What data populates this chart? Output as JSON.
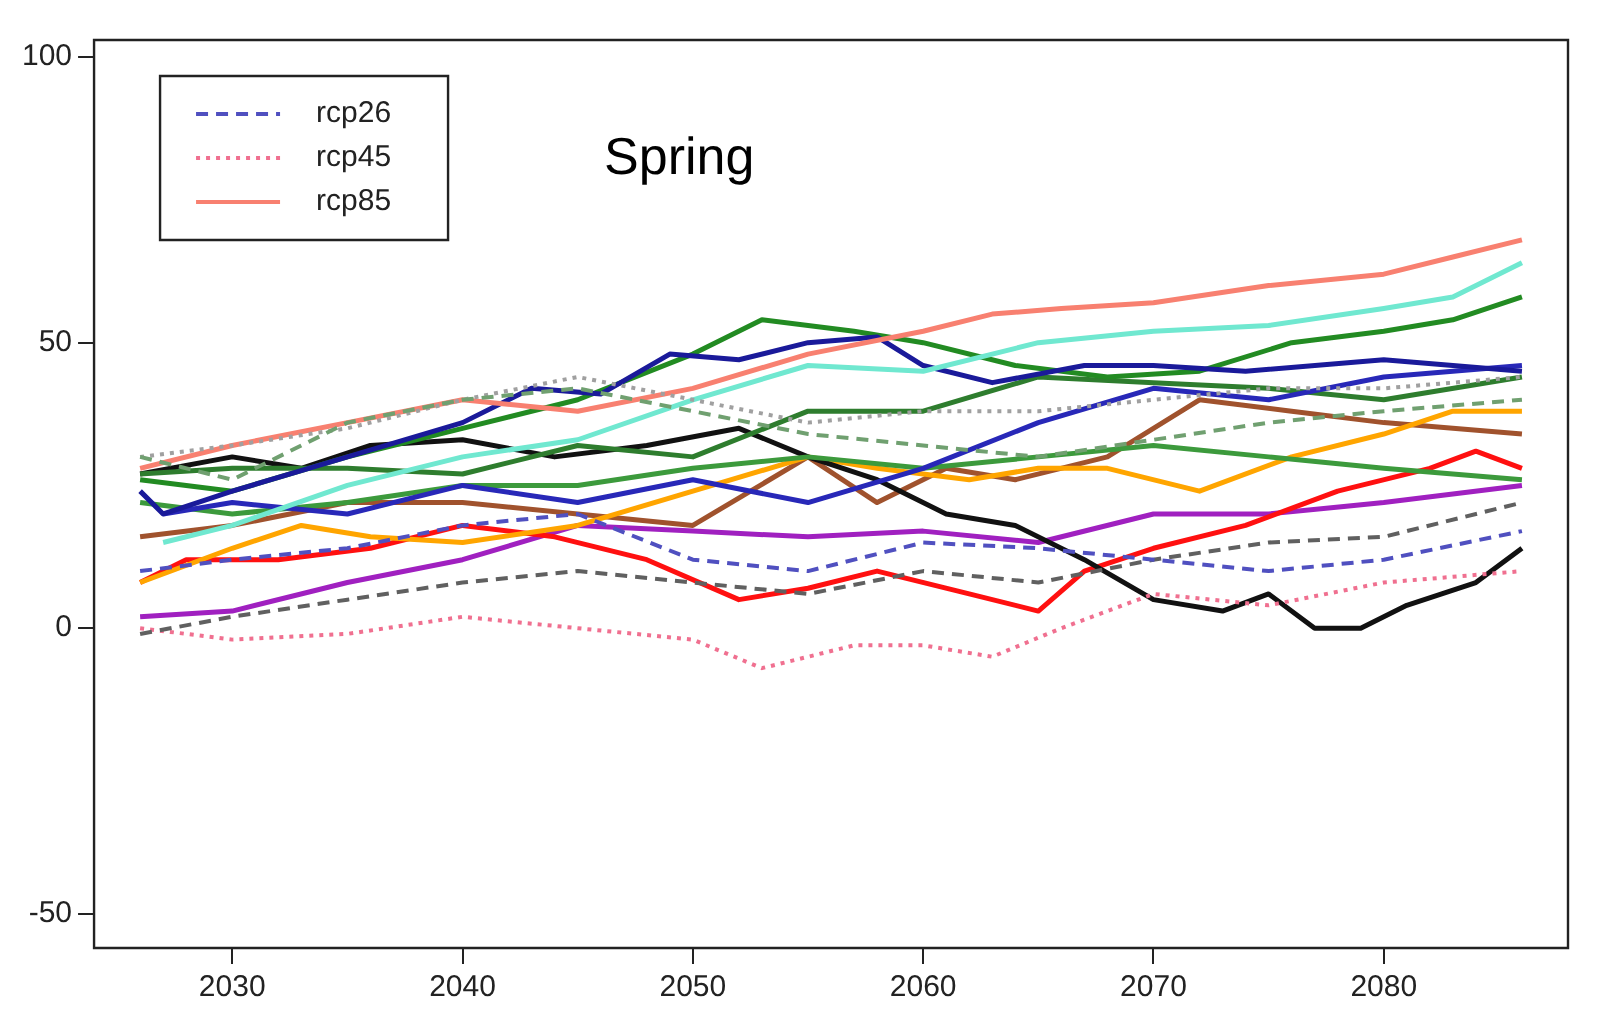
{
  "chart_data": {
    "type": "line",
    "title": "Spring",
    "xlim": [
      2024,
      2088
    ],
    "xticks": [
      2030,
      2040,
      2050,
      2060,
      2070,
      2080
    ],
    "ylim": [
      -56,
      103
    ],
    "yticks": [
      -50,
      0,
      50,
      100
    ],
    "grid": false,
    "legend": "top left",
    "marker": "none",
    "series": [
      {
        "name": "rcp26",
        "color": "#5050c0",
        "line_style": "dashed",
        "x": [
          2026,
          2030,
          2035,
          2040,
          2045,
          2050,
          2055,
          2060,
          2065,
          2070,
          2075,
          2080,
          2086
        ],
        "values": [
          10,
          12,
          14,
          18,
          20,
          12,
          10,
          15,
          14,
          12,
          10,
          12,
          17
        ]
      },
      {
        "color": "#606060",
        "line_style": "dashed",
        "x": [
          2026,
          2030,
          2035,
          2040,
          2045,
          2050,
          2055,
          2060,
          2065,
          2070,
          2075,
          2080,
          2086
        ],
        "values": [
          -1,
          2,
          5,
          8,
          10,
          8,
          6,
          10,
          8,
          12,
          15,
          16,
          22
        ]
      },
      {
        "color": "#70a070",
        "line_style": "dashed",
        "x": [
          2026,
          2030,
          2035,
          2040,
          2045,
          2050,
          2055,
          2060,
          2065,
          2070,
          2075,
          2080,
          2086
        ],
        "values": [
          30,
          26,
          36,
          40,
          42,
          38,
          34,
          32,
          30,
          33,
          36,
          38,
          40
        ]
      },
      {
        "name": "rcp45",
        "color": "#f07090",
        "line_style": "dotted",
        "x": [
          2026,
          2030,
          2035,
          2040,
          2045,
          2050,
          2053,
          2057,
          2060,
          2063,
          2066,
          2070,
          2075,
          2080,
          2086
        ],
        "values": [
          0,
          -2,
          -1,
          2,
          0,
          -2,
          -7,
          -3,
          -3,
          -5,
          0,
          6,
          4,
          8,
          10
        ]
      },
      {
        "color": "#a0a0a0",
        "line_style": "dotted",
        "x": [
          2026,
          2030,
          2035,
          2040,
          2045,
          2050,
          2055,
          2060,
          2065,
          2070,
          2075,
          2080,
          2086
        ],
        "values": [
          30,
          32,
          35,
          40,
          44,
          40,
          36,
          38,
          38,
          40,
          42,
          42,
          44
        ]
      },
      {
        "name": "rcp85",
        "color": "#f88070",
        "line_style": "solid",
        "x": [
          2026,
          2030,
          2035,
          2040,
          2045,
          2050,
          2055,
          2060,
          2063,
          2066,
          2070,
          2075,
          2080,
          2083,
          2086
        ],
        "values": [
          28,
          32,
          36,
          40,
          38,
          42,
          48,
          52,
          55,
          56,
          57,
          60,
          62,
          65,
          68
        ]
      },
      {
        "color": "#70e8d0",
        "line_style": "solid",
        "x": [
          2027,
          2030,
          2035,
          2040,
          2045,
          2050,
          2055,
          2060,
          2065,
          2070,
          2075,
          2080,
          2083,
          2086
        ],
        "values": [
          15,
          18,
          25,
          30,
          33,
          40,
          46,
          45,
          50,
          52,
          53,
          56,
          58,
          64
        ]
      },
      {
        "color": "#1a1a9a",
        "line_style": "solid",
        "x": [
          2026,
          2027,
          2030,
          2035,
          2040,
          2043,
          2046,
          2049,
          2052,
          2055,
          2058,
          2060,
          2063,
          2067,
          2070,
          2074,
          2080,
          2086
        ],
        "values": [
          24,
          20,
          24,
          30,
          36,
          42,
          41,
          48,
          47,
          50,
          51,
          46,
          43,
          46,
          46,
          45,
          47,
          45
        ]
      },
      {
        "color": "#2828b8",
        "line_style": "solid",
        "x": [
          2027,
          2030,
          2035,
          2040,
          2045,
          2050,
          2055,
          2060,
          2065,
          2070,
          2075,
          2080,
          2086
        ],
        "values": [
          20,
          22,
          20,
          25,
          22,
          26,
          22,
          28,
          36,
          42,
          40,
          44,
          46
        ]
      },
      {
        "color": "#228b22",
        "line_style": "solid",
        "x": [
          2026,
          2030,
          2035,
          2040,
          2045,
          2050,
          2053,
          2057,
          2060,
          2064,
          2068,
          2072,
          2076,
          2080,
          2083,
          2086
        ],
        "values": [
          26,
          24,
          30,
          35,
          40,
          48,
          54,
          52,
          50,
          46,
          44,
          45,
          50,
          52,
          54,
          58
        ]
      },
      {
        "color": "#2e7d2e",
        "line_style": "solid",
        "x": [
          2026,
          2030,
          2035,
          2040,
          2045,
          2050,
          2055,
          2060,
          2065,
          2070,
          2075,
          2080,
          2086
        ],
        "values": [
          27,
          28,
          28,
          27,
          32,
          30,
          38,
          38,
          44,
          43,
          42,
          40,
          44
        ]
      },
      {
        "color": "#3c9a3c",
        "line_style": "solid",
        "x": [
          2026,
          2030,
          2035,
          2040,
          2045,
          2050,
          2055,
          2060,
          2065,
          2070,
          2075,
          2080,
          2086
        ],
        "values": [
          22,
          20,
          22,
          25,
          25,
          28,
          30,
          28,
          30,
          32,
          30,
          28,
          26
        ]
      },
      {
        "color": "#111111",
        "line_style": "solid",
        "x": [
          2026,
          2030,
          2033,
          2036,
          2040,
          2044,
          2048,
          2052,
          2055,
          2058,
          2061,
          2064,
          2067,
          2070,
          2073,
          2075,
          2077,
          2079,
          2081,
          2084,
          2086
        ],
        "values": [
          27,
          30,
          28,
          32,
          33,
          30,
          32,
          35,
          30,
          26,
          20,
          18,
          12,
          5,
          3,
          6,
          0,
          0,
          4,
          8,
          14
        ]
      },
      {
        "color": "#ffa500",
        "line_style": "solid",
        "x": [
          2026,
          2030,
          2033,
          2036,
          2040,
          2045,
          2050,
          2055,
          2058,
          2062,
          2065,
          2068,
          2072,
          2076,
          2080,
          2083,
          2086
        ],
        "values": [
          8,
          14,
          18,
          16,
          15,
          18,
          24,
          30,
          28,
          26,
          28,
          28,
          24,
          30,
          34,
          38,
          38
        ]
      },
      {
        "color": "#ff1010",
        "line_style": "solid",
        "x": [
          2026,
          2028,
          2032,
          2036,
          2040,
          2044,
          2048,
          2052,
          2055,
          2058,
          2062,
          2065,
          2067,
          2070,
          2074,
          2078,
          2082,
          2084,
          2086
        ],
        "values": [
          8,
          12,
          12,
          14,
          18,
          16,
          12,
          5,
          7,
          10,
          6,
          3,
          10,
          14,
          18,
          24,
          28,
          31,
          28
        ]
      },
      {
        "color": "#a020c0",
        "line_style": "solid",
        "x": [
          2026,
          2030,
          2035,
          2040,
          2045,
          2050,
          2055,
          2060,
          2065,
          2070,
          2075,
          2080,
          2086
        ],
        "values": [
          2,
          3,
          8,
          12,
          18,
          17,
          16,
          17,
          15,
          20,
          20,
          22,
          25
        ]
      },
      {
        "color": "#a0522d",
        "line_style": "solid",
        "x": [
          2026,
          2030,
          2035,
          2040,
          2045,
          2050,
          2055,
          2058,
          2061,
          2064,
          2068,
          2072,
          2076,
          2080,
          2086
        ],
        "values": [
          16,
          18,
          22,
          22,
          20,
          18,
          30,
          22,
          28,
          26,
          30,
          40,
          38,
          36,
          34
        ]
      }
    ]
  }
}
